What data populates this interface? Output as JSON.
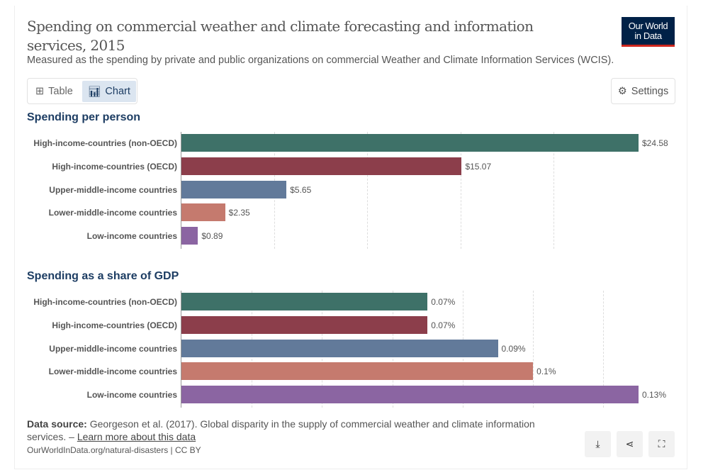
{
  "header": {
    "title": "Spending on commercial weather and climate forecasting and information services, 2015",
    "subtitle": "Measured as the spending by private and public organizations on commercial Weather and Climate Information Services (WCIS).",
    "logo": "Our World in Data"
  },
  "controls": {
    "table_label": "Table",
    "chart_label": "Chart",
    "settings_label": "Settings"
  },
  "chart_data": [
    {
      "type": "bar",
      "title": "Spending per person",
      "categories": [
        "High-income-countries (non-OECD)",
        "High-income-countries (OECD)",
        "Upper-middle-income countries",
        "Lower-middle-income countries",
        "Low-income countries"
      ],
      "values": [
        24.58,
        15.07,
        5.65,
        2.35,
        0.89
      ],
      "labels": [
        "$24.58",
        "$15.07",
        "$5.65",
        "$2.35",
        "$0.89"
      ],
      "xlim": [
        0,
        24.58
      ],
      "grid_step": 5,
      "colors": [
        "#3e7168",
        "#8c3e4b",
        "#627a9a",
        "#c57a6e",
        "#8b65a2"
      ]
    },
    {
      "type": "bar",
      "title": "Spending as a share of GDP",
      "categories": [
        "High-income-countries (non-OECD)",
        "High-income-countries (OECD)",
        "Upper-middle-income countries",
        "Lower-middle-income countries",
        "Low-income countries"
      ],
      "values": [
        0.07,
        0.07,
        0.09,
        0.1,
        0.13
      ],
      "labels": [
        "0.07%",
        "0.07%",
        "0.09%",
        "0.1%",
        "0.13%"
      ],
      "xlim": [
        0,
        0.13
      ],
      "grid_step": 0.02,
      "colors": [
        "#3e7168",
        "#8c3e4b",
        "#627a9a",
        "#c57a6e",
        "#8b65a2"
      ]
    }
  ],
  "footer": {
    "source_label": "Data source:",
    "source_text": " Georgeson et al. (2017). Global disparity in the supply of commercial weather and climate information services. – ",
    "learn_more": "Learn more about this data",
    "url": "OurWorldInData.org/natural-disasters | CC BY"
  }
}
